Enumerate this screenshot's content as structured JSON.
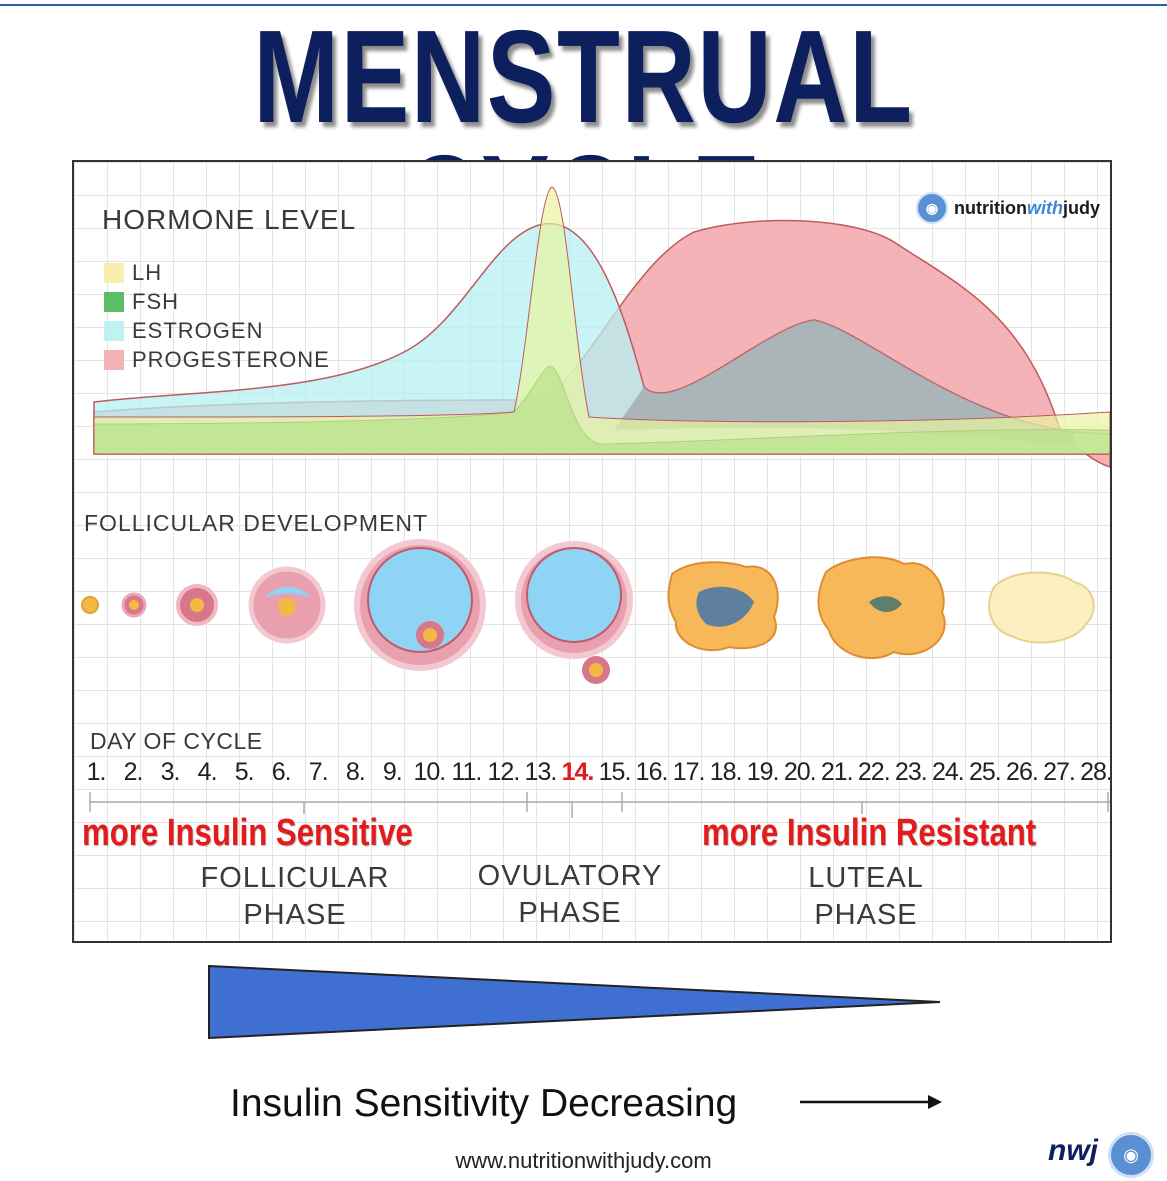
{
  "title": "MENSTRUAL CYCLE",
  "hormone_section": {
    "title": "HORMONE LEVEL",
    "legend": [
      {
        "label": "LH",
        "color": "#f7eba0"
      },
      {
        "label": "FSH",
        "color": "#3db54a"
      },
      {
        "label": "ESTROGEN",
        "color": "#b5f0f2"
      },
      {
        "label": "PROGESTERONE",
        "color": "#f2a6a9"
      }
    ]
  },
  "brand": {
    "prefix": "nutrition",
    "middle": "with",
    "suffix": "judy"
  },
  "follicular_title": "FOLLICULAR DEVELOPMENT",
  "day_of_cycle": {
    "title": "DAY OF CYCLE",
    "days": [
      "1.",
      "2.",
      "3.",
      "4.",
      "5.",
      "6.",
      "7.",
      "8.",
      "9.",
      "10.",
      "11.",
      "12.",
      "13.",
      "14.",
      "15.",
      "16.",
      "17.",
      "18.",
      "19.",
      "20.",
      "21.",
      "22.",
      "23.",
      "24.",
      "25.",
      "26.",
      "27.",
      "28."
    ],
    "highlight_day": "14"
  },
  "sensitivity": {
    "left": "more Insulin Sensitive",
    "right": "more Insulin Resistant"
  },
  "phases": [
    {
      "line1": "FOLLICULAR",
      "line2": "PHASE"
    },
    {
      "line1": "OVULATORY",
      "line2": "PHASE"
    },
    {
      "line1": "LUTEAL",
      "line2": "PHASE"
    }
  ],
  "caption": "Insulin Sensitivity Decreasing",
  "website": "www.nutritionwithjudy.com",
  "footer_logo": "nwj",
  "colors": {
    "title": "#0d1f5c",
    "accent_red": "#e31b1b",
    "wedge": "#3f6fd0"
  }
}
